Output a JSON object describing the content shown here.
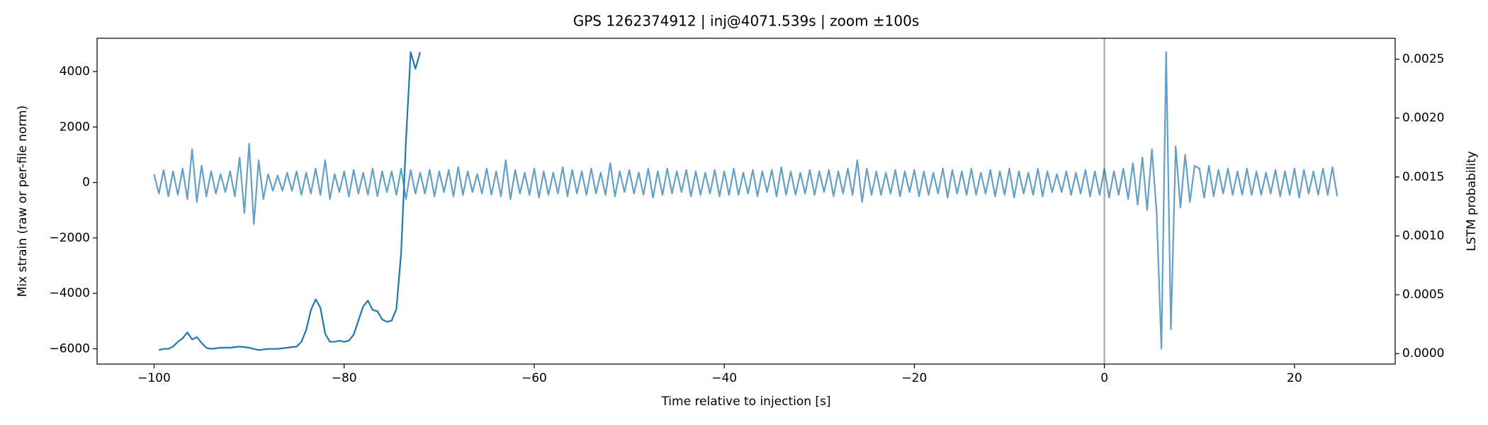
{
  "chart_data": {
    "type": "line",
    "title": "GPS 1262374912 | inj@4071.539s | zoom ±100s",
    "x_label": "Time relative to injection [s]",
    "y_label": "Mix strain (raw or per-file norm)",
    "y2_label": "LSTM probability",
    "xlim": [
      -106,
      30.6
    ],
    "ylim": [
      -6550,
      5200
    ],
    "y2lim": [
      -8.9e-05,
      0.002678
    ],
    "xticks": [
      {
        "value": -100,
        "label": "−100"
      },
      {
        "value": -80,
        "label": "−80"
      },
      {
        "value": -60,
        "label": "−60"
      },
      {
        "value": -40,
        "label": "−40"
      },
      {
        "value": -20,
        "label": "−20"
      },
      0,
      20
    ],
    "yticks": [
      {
        "value": -6000,
        "label": "−6000"
      },
      {
        "value": -4000,
        "label": "−4000"
      },
      {
        "value": -2000,
        "label": "−2000"
      },
      0,
      2000,
      4000
    ],
    "y2ticks": [
      {
        "value": 0,
        "label": "0.0000"
      },
      {
        "value": 0.0005,
        "label": "0.0005"
      },
      {
        "value": 0.001,
        "label": "0.0010"
      },
      {
        "value": 0.0015,
        "label": "0.0015"
      },
      {
        "value": 0.002,
        "label": "0.0020"
      },
      {
        "value": 0.0025,
        "label": "0.0025"
      }
    ],
    "marker_x": 0,
    "marker_color": "#b0b0b0",
    "series": [
      {
        "color": "#1f77b4",
        "opacity": 0.7,
        "axis": "y",
        "x": [
          -100,
          -99.5,
          -99,
          -98.5,
          -98,
          -97.5,
          -97,
          -96.5,
          -96,
          -95.5,
          -95,
          -94.5,
          -94,
          -93.5,
          -93,
          -92.5,
          -92,
          -91.5,
          -91,
          -90.5,
          -90,
          -89.5,
          -89,
          -88.5,
          -88,
          -87.5,
          -87,
          -86.5,
          -86,
          -85.5,
          -85,
          -84.5,
          -84,
          -83.5,
          -83,
          -82.5,
          -82,
          -81.5,
          -81,
          -80.5,
          -80,
          -79.5,
          -79,
          -78.5,
          -78,
          -77.5,
          -77,
          -76.5,
          -76,
          -75.5,
          -75,
          -74.5,
          -74,
          -73.5,
          -73,
          -72.5,
          -72,
          -71.5,
          -71,
          -70.5,
          -70,
          -69.5,
          -69,
          -68.5,
          -68,
          -67.5,
          -67,
          -66.5,
          -66,
          -65.5,
          -65,
          -64.5,
          -64,
          -63.5,
          -63,
          -62.5,
          -62,
          -61.5,
          -61,
          -60.5,
          -60,
          -59.5,
          -59,
          -58.5,
          -58,
          -57.5,
          -57,
          -56.5,
          -56,
          -55.5,
          -55,
          -54.5,
          -54,
          -53.5,
          -53,
          -52.5,
          -52,
          -51.5,
          -51,
          -50.5,
          -50,
          -49.5,
          -49,
          -48.5,
          -48,
          -47.5,
          -47,
          -46.5,
          -46,
          -45.5,
          -45,
          -44.5,
          -44,
          -43.5,
          -43,
          -42.5,
          -42,
          -41.5,
          -41,
          -40.5,
          -40,
          -39.5,
          -39,
          -38.5,
          -38,
          -37.5,
          -37,
          -36.5,
          -36,
          -35.5,
          -35,
          -34.5,
          -34,
          -33.5,
          -33,
          -32.5,
          -32,
          -31.5,
          -31,
          -30.5,
          -30,
          -29.5,
          -29,
          -28.5,
          -28,
          -27.5,
          -27,
          -26.5,
          -26,
          -25.5,
          -25,
          -24.5,
          -24,
          -23.5,
          -23,
          -22.5,
          -22,
          -21.5,
          -21,
          -20.5,
          -20,
          -19.5,
          -19,
          -18.5,
          -18,
          -17.5,
          -17,
          -16.5,
          -16,
          -15.5,
          -15,
          -14.5,
          -14,
          -13.5,
          -13,
          -12.5,
          -12,
          -11.5,
          -11,
          -10.5,
          -10,
          -9.5,
          -9,
          -8.5,
          -8,
          -7.5,
          -7,
          -6.5,
          -6,
          -5.5,
          -5,
          -4.5,
          -4,
          -3.5,
          -3,
          -2.5,
          -2,
          -1.5,
          -1,
          -0.5,
          0,
          0.5,
          1,
          1.5,
          2,
          2.5,
          3,
          3.5,
          4,
          4.5,
          5,
          5.5,
          6,
          6.5,
          7,
          7.5,
          8,
          8.5,
          9,
          9.5,
          10,
          10.5,
          11,
          11.5,
          12,
          12.5,
          13,
          13.5,
          14,
          14.5,
          15,
          15.5,
          16,
          16.5,
          17,
          17.5,
          18,
          18.5,
          19,
          19.5,
          20,
          20.5,
          21,
          21.5,
          22,
          22.5,
          23,
          23.5,
          24,
          24.5
        ],
        "values": [
          300,
          -400,
          450,
          -500,
          400,
          -450,
          500,
          -600,
          1200,
          -700,
          600,
          -500,
          400,
          -400,
          300,
          -350,
          400,
          -500,
          900,
          -1100,
          1400,
          -1500,
          800,
          -600,
          300,
          -300,
          250,
          -300,
          350,
          -300,
          400,
          -450,
          350,
          -400,
          500,
          -450,
          800,
          -600,
          300,
          -350,
          400,
          -500,
          450,
          -400,
          350,
          -450,
          500,
          -500,
          400,
          -350,
          400,
          -450,
          500,
          -600,
          450,
          -400,
          350,
          -400,
          450,
          -500,
          400,
          -350,
          450,
          -500,
          550,
          -450,
          400,
          -350,
          300,
          -400,
          500,
          -450,
          400,
          -500,
          800,
          -600,
          450,
          -400,
          350,
          -450,
          500,
          -550,
          400,
          -450,
          350,
          -400,
          550,
          -500,
          450,
          -400,
          400,
          -450,
          500,
          -400,
          350,
          -450,
          700,
          -500,
          400,
          -350,
          450,
          -400,
          350,
          -450,
          500,
          -550,
          400,
          -450,
          500,
          -400,
          400,
          -350,
          450,
          -500,
          400,
          -450,
          350,
          -400,
          450,
          -500,
          400,
          -450,
          500,
          -450,
          350,
          -400,
          450,
          -500,
          400,
          -350,
          450,
          -500,
          550,
          -450,
          400,
          -450,
          350,
          -400,
          450,
          -450,
          400,
          -350,
          450,
          -500,
          400,
          -400,
          500,
          -450,
          800,
          -700,
          500,
          -450,
          400,
          -450,
          350,
          -400,
          450,
          -500,
          400,
          -350,
          450,
          -500,
          400,
          -450,
          350,
          -400,
          500,
          -550,
          450,
          -400,
          400,
          -450,
          500,
          -450,
          350,
          -400,
          450,
          -500,
          400,
          -450,
          500,
          -550,
          400,
          -400,
          350,
          -450,
          500,
          -500,
          400,
          -350,
          300,
          -350,
          400,
          -450,
          350,
          -400,
          450,
          -500,
          400,
          -450,
          500,
          -550,
          400,
          -450,
          500,
          -600,
          700,
          -800,
          900,
          -1000,
          1200,
          -1100,
          -6000,
          4700,
          -5300,
          1300,
          -900,
          1000,
          -700,
          600,
          500,
          -550,
          600,
          -500,
          450,
          -400,
          500,
          -450,
          400,
          -450,
          500,
          -450,
          400,
          -450,
          350,
          -400,
          450,
          -500,
          400,
          -450,
          500,
          -550,
          450,
          -400,
          400,
          -450,
          500,
          -450,
          550,
          -500
        ]
      },
      {
        "color": "#1f77b4",
        "opacity": 1,
        "axis": "y2",
        "x": [
          -99.5,
          -99,
          -98.5,
          -98,
          -97.5,
          -97,
          -96.5,
          -96,
          -95.5,
          -95,
          -94.5,
          -94,
          -93,
          -92,
          -91,
          -90,
          -89,
          -88,
          -87,
          -86,
          -85,
          -84.5,
          -84,
          -83.5,
          -83,
          -82.5,
          -82,
          -81.5,
          -81,
          -80.5,
          -80,
          -79.5,
          -79,
          -78.5,
          -78,
          -77.5,
          -77,
          -76.5,
          -76,
          -75.5,
          -75,
          -74.5,
          -74,
          -73.5,
          -73,
          -72.5,
          -72
        ],
        "values": [
          3e-05,
          4e-05,
          4e-05,
          6e-05,
          0.0001,
          0.00013,
          0.00018,
          0.00012,
          0.00014,
          9e-05,
          5e-05,
          4e-05,
          5e-05,
          5e-05,
          6e-05,
          5e-05,
          3e-05,
          4e-05,
          4e-05,
          5e-05,
          6e-05,
          0.0001,
          0.0002,
          0.00037,
          0.00046,
          0.00039,
          0.00017,
          0.0001,
          0.0001,
          0.00011,
          0.0001,
          0.00011,
          0.00016,
          0.00028,
          0.0004,
          0.00045,
          0.00037,
          0.00036,
          0.00029,
          0.00027,
          0.00028,
          0.00038,
          0.00086,
          0.0018,
          0.00256,
          0.00242,
          0.00256
        ]
      }
    ]
  }
}
